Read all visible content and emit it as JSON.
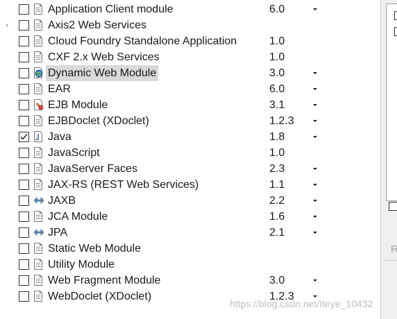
{
  "facets": [
    {
      "label": "Application Client module",
      "version": "6.0",
      "checked": false,
      "dropdown": true,
      "icon": "doc-icon"
    },
    {
      "label": "Axis2 Web Services",
      "version": "",
      "checked": false,
      "dropdown": false,
      "icon": "doc-icon",
      "expandable": true
    },
    {
      "label": "Cloud Foundry Standalone Application",
      "version": "1.0",
      "checked": false,
      "dropdown": false,
      "icon": "doc-icon"
    },
    {
      "label": "CXF 2.x Web Services",
      "version": "1.0",
      "checked": false,
      "dropdown": false,
      "icon": "doc-icon"
    },
    {
      "label": "Dynamic Web Module",
      "version": "3.0",
      "checked": false,
      "dropdown": true,
      "icon": "web-module-icon",
      "selected": true
    },
    {
      "label": "EAR",
      "version": "6.0",
      "checked": false,
      "dropdown": true,
      "icon": "doc-icon"
    },
    {
      "label": "EJB Module",
      "version": "3.1",
      "checked": false,
      "dropdown": true,
      "icon": "ejb-icon"
    },
    {
      "label": "EJBDoclet (XDoclet)",
      "version": "1.2.3",
      "checked": false,
      "dropdown": true,
      "icon": "doc-icon"
    },
    {
      "label": "Java",
      "version": "1.8",
      "checked": true,
      "dropdown": true,
      "icon": "java-icon"
    },
    {
      "label": "JavaScript",
      "version": "1.0",
      "checked": false,
      "dropdown": false,
      "icon": "doc-icon"
    },
    {
      "label": "JavaServer Faces",
      "version": "2.3",
      "checked": false,
      "dropdown": true,
      "icon": "doc-icon"
    },
    {
      "label": "JAX-RS (REST Web Services)",
      "version": "1.1",
      "checked": false,
      "dropdown": true,
      "icon": "doc-icon"
    },
    {
      "label": "JAXB",
      "version": "2.2",
      "checked": false,
      "dropdown": true,
      "icon": "arrows-icon"
    },
    {
      "label": "JCA Module",
      "version": "1.6",
      "checked": false,
      "dropdown": true,
      "icon": "doc-icon"
    },
    {
      "label": "JPA",
      "version": "2.1",
      "checked": false,
      "dropdown": true,
      "icon": "arrows-icon"
    },
    {
      "label": "Static Web Module",
      "version": "",
      "checked": false,
      "dropdown": false,
      "icon": "doc-icon"
    },
    {
      "label": "Utility Module",
      "version": "",
      "checked": false,
      "dropdown": false,
      "icon": "doc-icon"
    },
    {
      "label": "Web Fragment Module",
      "version": "3.0",
      "checked": false,
      "dropdown": true,
      "icon": "doc-icon"
    },
    {
      "label": "WebDoclet (XDoclet)",
      "version": "1.2.3",
      "checked": false,
      "dropdown": true,
      "icon": "doc-icon"
    }
  ],
  "side_panel": {
    "label": "R"
  },
  "watermark": "https://blog.csdn.net/Iteye_10432",
  "colors": {
    "selection": "#d9d9d9",
    "text": "#1a1a1a",
    "panel": "#f0f0f0"
  }
}
